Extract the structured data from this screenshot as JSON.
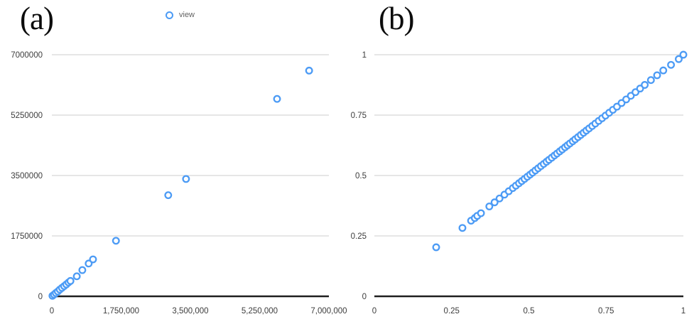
{
  "figure": {
    "background": "#ffffff",
    "marker_color": "#4c9bf5",
    "marker_fill": "#ffffff",
    "gridline_color": "#cccccc",
    "axis_color": "#1f1f1f",
    "tick_text_color": "#3c3c3c",
    "legend_text_color": "#616161"
  },
  "panels": [
    {
      "label": "(a)"
    },
    {
      "label": "(b)"
    }
  ],
  "legend": {
    "series_label": "view",
    "marker": "open-circle-icon",
    "position": "top-center-of-left-chart"
  },
  "chart_data": [
    {
      "type": "scatter",
      "panel_label": "(a)",
      "title": "",
      "xlabel": "",
      "ylabel": "",
      "grid": "horizontal-only",
      "legend_position": "top",
      "xlim": [
        0,
        7000000
      ],
      "ylim": [
        0,
        7000000
      ],
      "xticks": {
        "values": [
          0,
          1750000,
          3500000,
          5250000,
          7000000
        ],
        "labels": [
          "0",
          "1,750,000",
          "3,500,000",
          "5,250,000",
          "7,000,000"
        ]
      },
      "yticks": {
        "values": [
          0,
          1750000,
          3500000,
          5250000,
          7000000
        ],
        "labels": [
          "0",
          "1750000",
          "3500000",
          "5250000",
          "7000000"
        ]
      },
      "series": [
        {
          "name": "view",
          "marker": "open-circle",
          "points": [
            [
              15000,
              15000
            ],
            [
              55000,
              50000
            ],
            [
              100000,
              95000
            ],
            [
              150000,
              140000
            ],
            [
              200000,
              195000
            ],
            [
              255000,
              245000
            ],
            [
              310000,
              295000
            ],
            [
              365000,
              345000
            ],
            [
              420000,
              400000
            ],
            [
              470000,
              445000
            ],
            [
              630000,
              580000
            ],
            [
              770000,
              760000
            ],
            [
              930000,
              950000
            ],
            [
              1040000,
              1070000
            ],
            [
              1620000,
              1610000
            ],
            [
              2940000,
              2930000
            ],
            [
              3390000,
              3400000
            ],
            [
              5690000,
              5720000
            ],
            [
              6500000,
              6540000
            ]
          ]
        }
      ]
    },
    {
      "type": "scatter",
      "panel_label": "(b)",
      "title": "",
      "xlabel": "",
      "ylabel": "",
      "grid": "horizontal-only",
      "legend_position": "none",
      "xlim": [
        0,
        1
      ],
      "ylim": [
        0,
        1
      ],
      "xticks": {
        "values": [
          0,
          0.25,
          0.5,
          0.75,
          1
        ],
        "labels": [
          "0",
          "0.25",
          "0.5",
          "0.75",
          "1"
        ]
      },
      "yticks": {
        "values": [
          0,
          0.25,
          0.5,
          0.75,
          1
        ],
        "labels": [
          "0",
          "0.25",
          "0.5",
          "0.75",
          "1"
        ]
      },
      "series": [
        {
          "name": "view",
          "marker": "open-circle",
          "points": [
            [
              0.2,
              0.203
            ],
            [
              0.285,
              0.283
            ],
            [
              0.313,
              0.313
            ],
            [
              0.325,
              0.324
            ],
            [
              0.333,
              0.333
            ],
            [
              0.345,
              0.344
            ],
            [
              0.372,
              0.372
            ],
            [
              0.389,
              0.389
            ],
            [
              0.405,
              0.405
            ],
            [
              0.421,
              0.421
            ],
            [
              0.435,
              0.435
            ],
            [
              0.448,
              0.448
            ],
            [
              0.458,
              0.458
            ],
            [
              0.468,
              0.468
            ],
            [
              0.477,
              0.477
            ],
            [
              0.486,
              0.486
            ],
            [
              0.495,
              0.495
            ],
            [
              0.504,
              0.504
            ],
            [
              0.512,
              0.512
            ],
            [
              0.521,
              0.521
            ],
            [
              0.53,
              0.53
            ],
            [
              0.539,
              0.539
            ],
            [
              0.548,
              0.548
            ],
            [
              0.557,
              0.557
            ],
            [
              0.565,
              0.565
            ],
            [
              0.574,
              0.574
            ],
            [
              0.583,
              0.583
            ],
            [
              0.591,
              0.591
            ],
            [
              0.6,
              0.6
            ],
            [
              0.608,
              0.608
            ],
            [
              0.617,
              0.617
            ],
            [
              0.625,
              0.625
            ],
            [
              0.633,
              0.633
            ],
            [
              0.642,
              0.642
            ],
            [
              0.65,
              0.65
            ],
            [
              0.659,
              0.659
            ],
            [
              0.668,
              0.668
            ],
            [
              0.677,
              0.677
            ],
            [
              0.686,
              0.686
            ],
            [
              0.695,
              0.695
            ],
            [
              0.705,
              0.705
            ],
            [
              0.715,
              0.715
            ],
            [
              0.726,
              0.726
            ],
            [
              0.737,
              0.737
            ],
            [
              0.748,
              0.748
            ],
            [
              0.76,
              0.76
            ],
            [
              0.772,
              0.772
            ],
            [
              0.785,
              0.785
            ],
            [
              0.8,
              0.8
            ],
            [
              0.815,
              0.815
            ],
            [
              0.83,
              0.83
            ],
            [
              0.845,
              0.845
            ],
            [
              0.86,
              0.86
            ],
            [
              0.875,
              0.875
            ],
            [
              0.895,
              0.895
            ],
            [
              0.915,
              0.915
            ],
            [
              0.935,
              0.935
            ],
            [
              0.96,
              0.958
            ],
            [
              0.985,
              0.982
            ],
            [
              1.0,
              1.0
            ]
          ]
        }
      ]
    }
  ]
}
